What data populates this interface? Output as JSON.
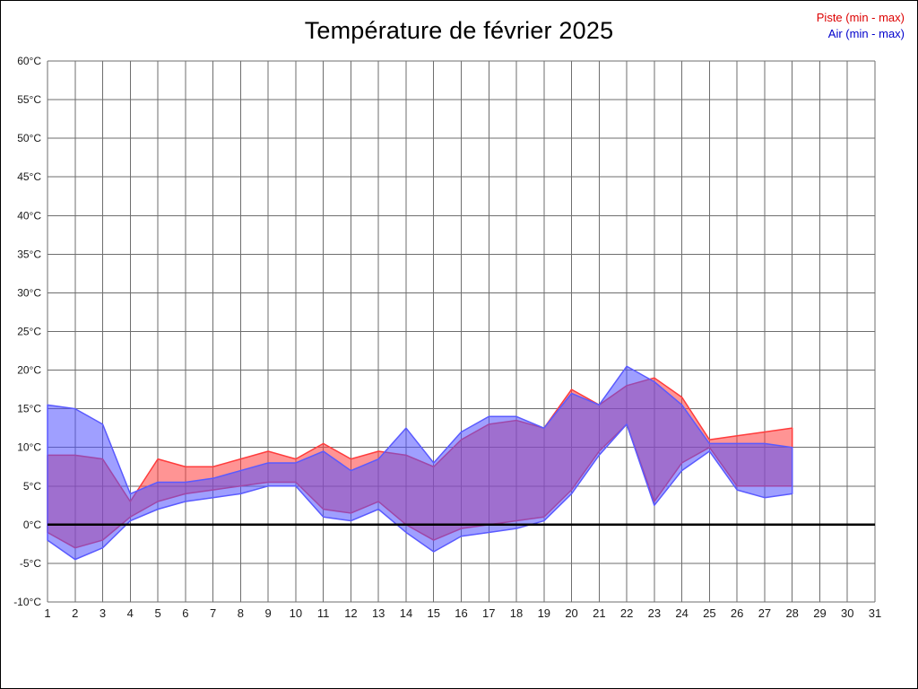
{
  "legend": {
    "piste_label": "Piste (min - max)",
    "air_label": "Air (min - max)"
  },
  "colors": {
    "piste_line": "#ff3c3c",
    "piste_fill": "rgba(255,60,60,0.55)",
    "air_line": "#5a5aff",
    "air_fill": "rgba(80,80,255,0.55)",
    "legend_piste": "#dd0000",
    "legend_air": "#0000cc",
    "grid": "#6e6e6e",
    "zero_line": "#000000",
    "tick_text": "#1a1a1a"
  },
  "chart_data": {
    "type": "area",
    "title": "Température de février 2025",
    "x": [
      1,
      2,
      3,
      4,
      5,
      6,
      7,
      8,
      9,
      10,
      11,
      12,
      13,
      14,
      15,
      16,
      17,
      18,
      19,
      20,
      21,
      22,
      23,
      24,
      25,
      26,
      27,
      28
    ],
    "xlim": [
      1,
      31
    ],
    "ylim": [
      -10,
      60
    ],
    "x_tick_step": 1,
    "y_tick_step": 5,
    "y_tick_suffix": "°C",
    "grid": true,
    "legend_position": "top-right",
    "series": [
      {
        "name": "Piste (min - max)",
        "max": [
          9,
          9,
          8.5,
          3,
          8.5,
          7.5,
          7.5,
          8.5,
          9.5,
          8.5,
          10.5,
          8.5,
          9.5,
          9,
          7.5,
          11,
          13,
          13.5,
          12.5,
          17.5,
          15.5,
          18,
          19,
          16.5,
          11,
          11.5,
          12,
          12.5
        ],
        "min": [
          -1,
          -3,
          -2,
          1,
          3,
          4,
          4.5,
          5,
          5.5,
          5.5,
          2,
          1.5,
          3,
          0,
          -2,
          -0.5,
          0,
          0.5,
          1,
          4.5,
          9.5,
          13,
          3,
          8,
          10,
          5,
          5,
          5
        ]
      },
      {
        "name": "Air (min - max)",
        "max": [
          15.5,
          15,
          13,
          4,
          5.5,
          5.5,
          6,
          7,
          8,
          8,
          9.5,
          7,
          8.5,
          12.5,
          8,
          12,
          14,
          14,
          12.5,
          17,
          15.5,
          20.5,
          18.5,
          15.5,
          10.5,
          10.5,
          10.5,
          10
        ],
        "min": [
          -2,
          -4.5,
          -3,
          0.5,
          2,
          3,
          3.5,
          4,
          5,
          5,
          1,
          0.5,
          2,
          -1,
          -3.5,
          -1.5,
          -1,
          -0.5,
          0.5,
          4,
          9,
          13,
          2.5,
          7,
          9.5,
          4.5,
          3.5,
          4
        ]
      }
    ]
  }
}
